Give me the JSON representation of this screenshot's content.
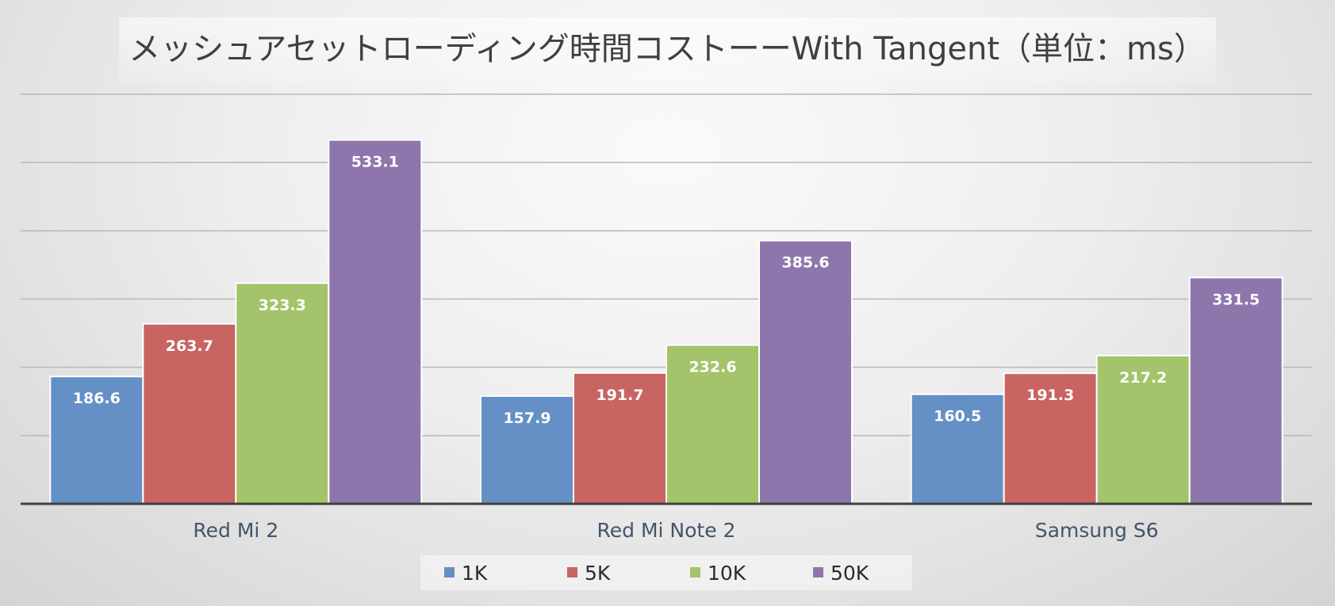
{
  "chart_data": {
    "type": "bar",
    "title": "メッシュアセットローディング時間コストーーWith Tangent（単位：ms）",
    "categories": [
      "Red Mi 2",
      "Red Mi Note 2",
      "Samsung S6"
    ],
    "series": [
      {
        "name": "1K",
        "color": "#6490c6",
        "values": [
          186.6,
          157.9,
          160.5
        ]
      },
      {
        "name": "5K",
        "color": "#c86462",
        "values": [
          263.7,
          191.7,
          191.3
        ]
      },
      {
        "name": "10K",
        "color": "#a3c46a",
        "values": [
          323.3,
          232.6,
          217.2
        ]
      },
      {
        "name": "50K",
        "color": "#8e76ad",
        "values": [
          533.1,
          385.6,
          331.5
        ]
      }
    ],
    "ylim": [
      0,
      600
    ],
    "grid": true,
    "xlabel": "",
    "ylabel": "",
    "legend": "bottom"
  }
}
